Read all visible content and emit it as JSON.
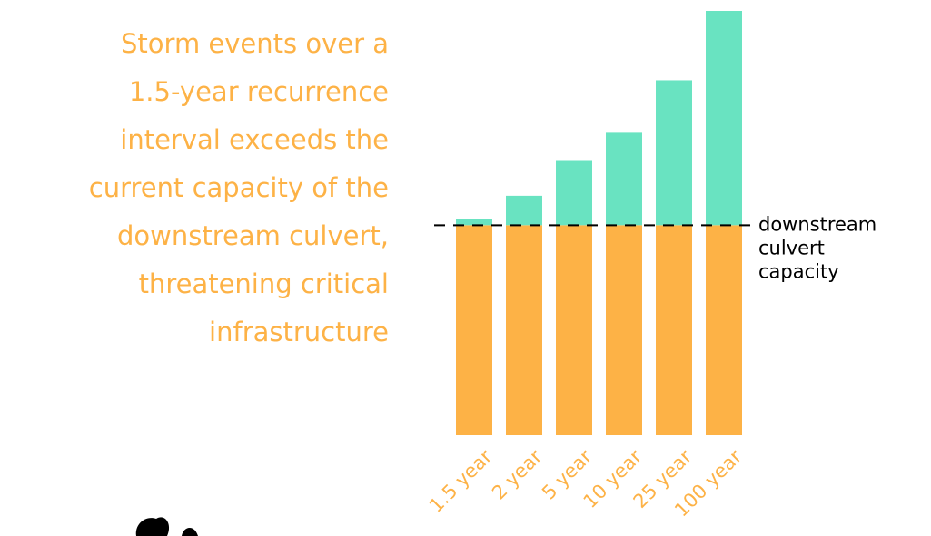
{
  "chart_data": {
    "type": "stacked_bar",
    "description_lines": [
      "Storm events over a",
      "1.5-year recurrence",
      "interval  exceeds the",
      "current capacity of the",
      "downstream culvert,",
      "threatening critical",
      "infrastructure"
    ],
    "categories": [
      "1.5 year",
      "2 year",
      "5 year",
      "10 year",
      "25 year",
      "100 year"
    ],
    "series": [
      {
        "color": "#fdb246",
        "values": [
          100,
          100,
          100,
          100,
          100,
          100
        ]
      },
      {
        "color": "#69e3c1",
        "values": [
          3,
          14,
          31,
          44,
          69,
          102
        ]
      }
    ],
    "ylim": [
      0,
      202
    ],
    "reference_line": {
      "value": 100,
      "label_lines": [
        "downstream",
        "culvert",
        "capacity"
      ]
    }
  }
}
